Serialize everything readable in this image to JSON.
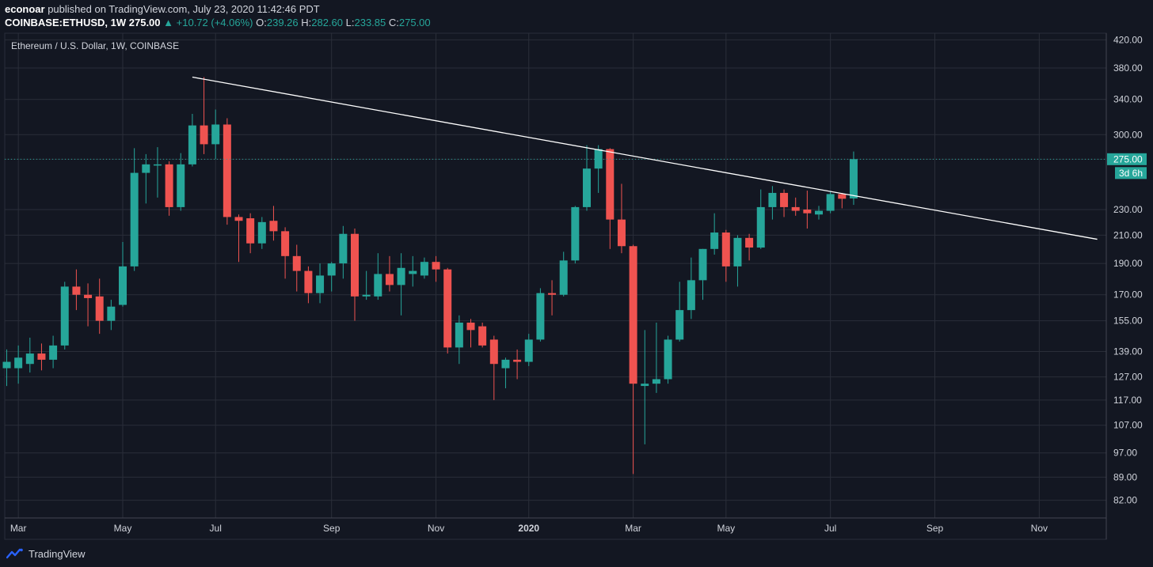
{
  "header": {
    "author": "econoar",
    "published": "published on TradingView.com, July 23, 2020 11:42:46 PDT",
    "symbol": "COINBASE:ETHUSD, 1W",
    "last": "275.00",
    "change": "+10.72 (+4.06%)",
    "o_label": "O:",
    "o_value": "239.26",
    "h_label": "H:",
    "h_value": "282.60",
    "l_label": "L:",
    "l_value": "233.85",
    "c_label": "C:",
    "c_value": "275.00"
  },
  "footer": {
    "brand": "TradingView",
    "logo_icon": "tradingview-logo-icon"
  },
  "colors": {
    "background": "#131722",
    "grid": "#2a2e39",
    "up": "#26a69a",
    "down": "#ef5350",
    "trendline": "#ffffff"
  },
  "chart_data": {
    "type": "candlestick",
    "title": "Ethereum / U.S. Dollar, 1W, COINBASE",
    "y_scale": "log",
    "ylim": [
      77,
      430
    ],
    "y_ticks": [
      82,
      89,
      97,
      107,
      117,
      127,
      139,
      155,
      170,
      190,
      210,
      230,
      275,
      300,
      340,
      380,
      420
    ],
    "y_tick_labels": [
      "82.00",
      "89.00",
      "97.00",
      "107.00",
      "117.00",
      "127.00",
      "139.00",
      "155.00",
      "170.00",
      "190.00",
      "210.00",
      "230.00",
      "275.00",
      "300.00",
      "340.00",
      "380.00",
      "420.00"
    ],
    "x_labels": [
      "Mar",
      "May",
      "Jul",
      "Sep",
      "Nov",
      "2020",
      "Mar",
      "May",
      "Jul",
      "Sep",
      "Nov"
    ],
    "x_label_weeks": [
      1,
      10,
      18,
      28,
      37,
      45,
      54,
      62,
      71,
      80,
      89
    ],
    "last_price": {
      "value": 275.0,
      "label": "275.00",
      "countdown": "3d 6h"
    },
    "trendline": {
      "from": {
        "week": 16,
        "price": 368
      },
      "to": {
        "week": 94,
        "price": 207
      }
    },
    "candles": [
      {
        "w": 0,
        "o": 131,
        "h": 140,
        "l": 123,
        "c": 134
      },
      {
        "w": 1,
        "o": 131,
        "h": 142,
        "l": 124,
        "c": 136
      },
      {
        "w": 2,
        "o": 133,
        "h": 146,
        "l": 129,
        "c": 138
      },
      {
        "w": 3,
        "o": 138,
        "h": 143,
        "l": 130,
        "c": 135
      },
      {
        "w": 4,
        "o": 135,
        "h": 147,
        "l": 131,
        "c": 142
      },
      {
        "w": 5,
        "o": 142,
        "h": 178,
        "l": 140,
        "c": 175
      },
      {
        "w": 6,
        "o": 175,
        "h": 186,
        "l": 161,
        "c": 170
      },
      {
        "w": 7,
        "o": 170,
        "h": 177,
        "l": 152,
        "c": 168
      },
      {
        "w": 8,
        "o": 169,
        "h": 180,
        "l": 148,
        "c": 155
      },
      {
        "w": 9,
        "o": 155,
        "h": 167,
        "l": 150,
        "c": 163
      },
      {
        "w": 10,
        "o": 164,
        "h": 205,
        "l": 163,
        "c": 188
      },
      {
        "w": 11,
        "o": 188,
        "h": 286,
        "l": 185,
        "c": 262
      },
      {
        "w": 12,
        "o": 262,
        "h": 280,
        "l": 235,
        "c": 270
      },
      {
        "w": 13,
        "o": 269,
        "h": 287,
        "l": 240,
        "c": 270
      },
      {
        "w": 14,
        "o": 270,
        "h": 273,
        "l": 225,
        "c": 232
      },
      {
        "w": 15,
        "o": 232,
        "h": 281,
        "l": 229,
        "c": 270
      },
      {
        "w": 16,
        "o": 270,
        "h": 323,
        "l": 268,
        "c": 310
      },
      {
        "w": 17,
        "o": 310,
        "h": 368,
        "l": 280,
        "c": 290
      },
      {
        "w": 18,
        "o": 290,
        "h": 328,
        "l": 275,
        "c": 311
      },
      {
        "w": 19,
        "o": 311,
        "h": 318,
        "l": 218,
        "c": 224
      },
      {
        "w": 20,
        "o": 224,
        "h": 226,
        "l": 191,
        "c": 221
      },
      {
        "w": 21,
        "o": 223,
        "h": 227,
        "l": 197,
        "c": 204
      },
      {
        "w": 22,
        "o": 204,
        "h": 224,
        "l": 200,
        "c": 220
      },
      {
        "w": 23,
        "o": 221,
        "h": 233,
        "l": 206,
        "c": 213
      },
      {
        "w": 24,
        "o": 213,
        "h": 216,
        "l": 180,
        "c": 195
      },
      {
        "w": 25,
        "o": 195,
        "h": 203,
        "l": 172,
        "c": 185
      },
      {
        "w": 26,
        "o": 185,
        "h": 188,
        "l": 165,
        "c": 171
      },
      {
        "w": 27,
        "o": 171,
        "h": 190,
        "l": 165,
        "c": 182
      },
      {
        "w": 28,
        "o": 182,
        "h": 191,
        "l": 172,
        "c": 190
      },
      {
        "w": 29,
        "o": 190,
        "h": 217,
        "l": 180,
        "c": 211
      },
      {
        "w": 30,
        "o": 211,
        "h": 215,
        "l": 155,
        "c": 169
      },
      {
        "w": 31,
        "o": 169,
        "h": 185,
        "l": 167,
        "c": 170
      },
      {
        "w": 32,
        "o": 169,
        "h": 197,
        "l": 167,
        "c": 183
      },
      {
        "w": 33,
        "o": 183,
        "h": 195,
        "l": 172,
        "c": 176
      },
      {
        "w": 34,
        "o": 176,
        "h": 197,
        "l": 158,
        "c": 187
      },
      {
        "w": 35,
        "o": 183,
        "h": 195,
        "l": 175,
        "c": 185
      },
      {
        "w": 36,
        "o": 182,
        "h": 194,
        "l": 180,
        "c": 191
      },
      {
        "w": 37,
        "o": 191,
        "h": 195,
        "l": 178,
        "c": 186
      },
      {
        "w": 38,
        "o": 186,
        "h": 187,
        "l": 138,
        "c": 141
      },
      {
        "w": 39,
        "o": 141,
        "h": 158,
        "l": 133,
        "c": 154
      },
      {
        "w": 40,
        "o": 154,
        "h": 156,
        "l": 141,
        "c": 150
      },
      {
        "w": 41,
        "o": 152,
        "h": 154,
        "l": 141,
        "c": 142
      },
      {
        "w": 42,
        "o": 145,
        "h": 147,
        "l": 117,
        "c": 133
      },
      {
        "w": 43,
        "o": 131,
        "h": 136,
        "l": 122,
        "c": 135
      },
      {
        "w": 44,
        "o": 135,
        "h": 140,
        "l": 126,
        "c": 134
      },
      {
        "w": 45,
        "o": 134,
        "h": 148,
        "l": 132,
        "c": 145
      },
      {
        "w": 46,
        "o": 145,
        "h": 174,
        "l": 144,
        "c": 171
      },
      {
        "w": 47,
        "o": 171,
        "h": 179,
        "l": 158,
        "c": 170
      },
      {
        "w": 48,
        "o": 170,
        "h": 198,
        "l": 169,
        "c": 192
      },
      {
        "w": 49,
        "o": 192,
        "h": 233,
        "l": 190,
        "c": 232
      },
      {
        "w": 50,
        "o": 232,
        "h": 289,
        "l": 229,
        "c": 266
      },
      {
        "w": 51,
        "o": 266,
        "h": 289,
        "l": 244,
        "c": 285
      },
      {
        "w": 52,
        "o": 285,
        "h": 286,
        "l": 200,
        "c": 222
      },
      {
        "w": 53,
        "o": 222,
        "h": 252,
        "l": 197,
        "c": 202
      },
      {
        "w": 54,
        "o": 202,
        "h": 203,
        "l": 90,
        "c": 124
      },
      {
        "w": 55,
        "o": 123,
        "h": 150,
        "l": 100,
        "c": 124
      },
      {
        "w": 56,
        "o": 124,
        "h": 154,
        "l": 120,
        "c": 126
      },
      {
        "w": 57,
        "o": 126,
        "h": 147,
        "l": 124,
        "c": 145
      },
      {
        "w": 58,
        "o": 145,
        "h": 178,
        "l": 144,
        "c": 161
      },
      {
        "w": 59,
        "o": 161,
        "h": 194,
        "l": 156,
        "c": 179
      },
      {
        "w": 60,
        "o": 179,
        "h": 200,
        "l": 167,
        "c": 200
      },
      {
        "w": 61,
        "o": 200,
        "h": 227,
        "l": 196,
        "c": 212
      },
      {
        "w": 62,
        "o": 212,
        "h": 214,
        "l": 178,
        "c": 188
      },
      {
        "w": 63,
        "o": 188,
        "h": 210,
        "l": 175,
        "c": 208
      },
      {
        "w": 64,
        "o": 208,
        "h": 211,
        "l": 192,
        "c": 201
      },
      {
        "w": 65,
        "o": 201,
        "h": 247,
        "l": 200,
        "c": 232
      },
      {
        "w": 66,
        "o": 232,
        "h": 250,
        "l": 222,
        "c": 244
      },
      {
        "w": 67,
        "o": 244,
        "h": 247,
        "l": 224,
        "c": 232
      },
      {
        "w": 68,
        "o": 232,
        "h": 240,
        "l": 225,
        "c": 229
      },
      {
        "w": 69,
        "o": 230,
        "h": 246,
        "l": 215,
        "c": 227
      },
      {
        "w": 70,
        "o": 226,
        "h": 233,
        "l": 222,
        "c": 229
      },
      {
        "w": 71,
        "o": 229,
        "h": 245,
        "l": 227,
        "c": 243
      },
      {
        "w": 72,
        "o": 243,
        "h": 244,
        "l": 231,
        "c": 239
      },
      {
        "w": 73,
        "o": 239.26,
        "h": 282.6,
        "l": 233.85,
        "c": 275
      }
    ]
  }
}
